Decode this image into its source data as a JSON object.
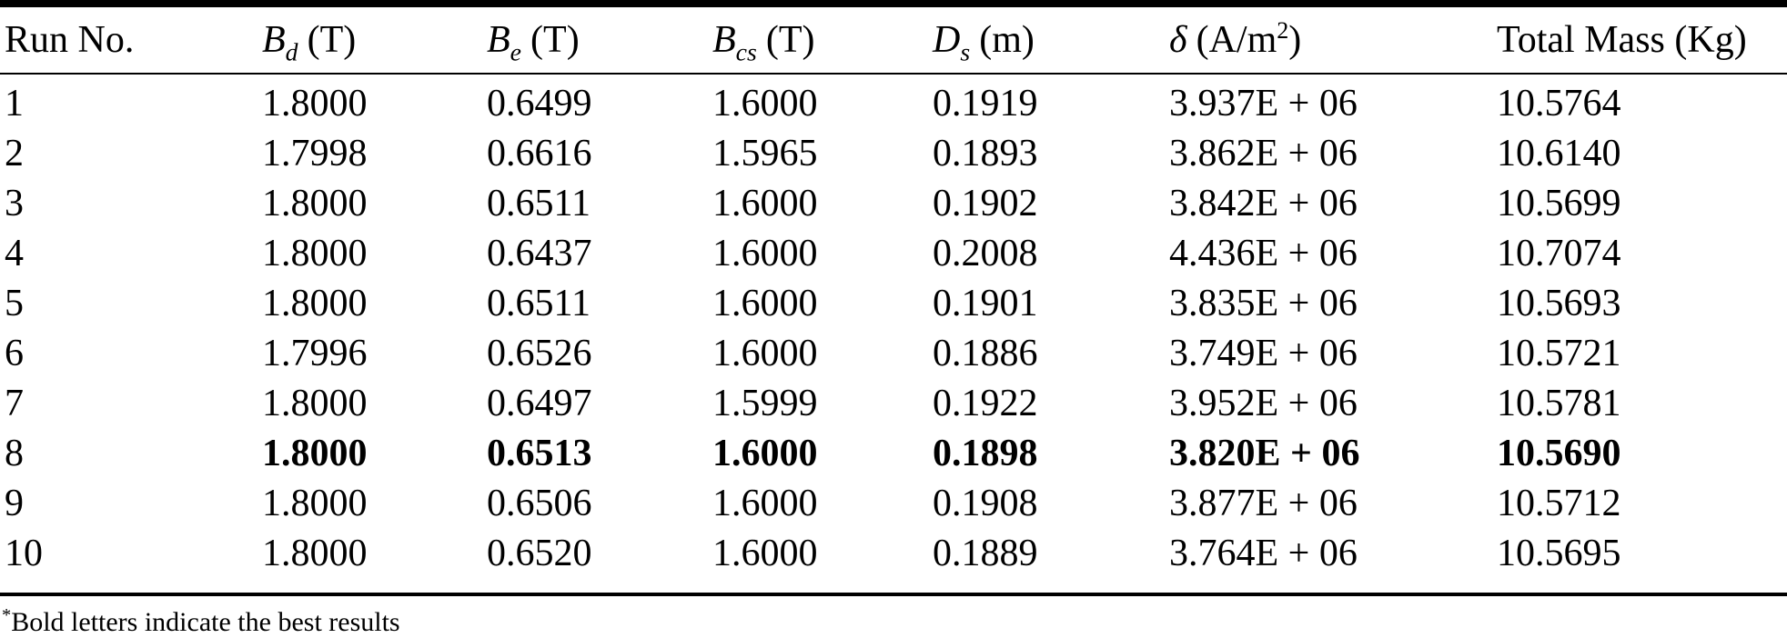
{
  "table": {
    "headers": [
      {
        "text": "Run No."
      },
      {
        "base": "B",
        "sub": "d",
        "unit": "(T)"
      },
      {
        "base": "B",
        "sub": "e",
        "unit": "(T)"
      },
      {
        "base": "B",
        "sub": "cs",
        "unit": "(T)"
      },
      {
        "base": "D",
        "sub": "s",
        "unit": "(m)"
      },
      {
        "base": "δ",
        "unit": "(A/m",
        "sup": "2",
        "close": ")"
      },
      {
        "text": "Total Mass (Kg)"
      }
    ],
    "rows": [
      {
        "bold": false,
        "cells": [
          "1",
          "1.8000",
          "0.6499",
          "1.6000",
          "0.1919",
          "3.937E + 06",
          "10.5764"
        ]
      },
      {
        "bold": false,
        "cells": [
          "2",
          "1.7998",
          "0.6616",
          "1.5965",
          "0.1893",
          "3.862E + 06",
          "10.6140"
        ]
      },
      {
        "bold": false,
        "cells": [
          "3",
          "1.8000",
          "0.6511",
          "1.6000",
          "0.1902",
          "3.842E + 06",
          "10.5699"
        ]
      },
      {
        "bold": false,
        "cells": [
          "4",
          "1.8000",
          "0.6437",
          "1.6000",
          "0.2008",
          "4.436E + 06",
          "10.7074"
        ]
      },
      {
        "bold": false,
        "cells": [
          "5",
          "1.8000",
          "0.6511",
          "1.6000",
          "0.1901",
          "3.835E + 06",
          "10.5693"
        ]
      },
      {
        "bold": false,
        "cells": [
          "6",
          "1.7996",
          "0.6526",
          "1.6000",
          "0.1886",
          "3.749E + 06",
          "10.5721"
        ]
      },
      {
        "bold": false,
        "cells": [
          "7",
          "1.8000",
          "0.6497",
          "1.5999",
          "0.1922",
          "3.952E + 06",
          "10.5781"
        ]
      },
      {
        "bold": true,
        "cells": [
          "8",
          "1.8000",
          "0.6513",
          "1.6000",
          "0.1898",
          "3.820E + 06",
          "10.5690"
        ]
      },
      {
        "bold": false,
        "cells": [
          "9",
          "1.8000",
          "0.6506",
          "1.6000",
          "0.1908",
          "3.877E + 06",
          "10.5712"
        ]
      },
      {
        "bold": false,
        "cells": [
          "10",
          "1.8000",
          "0.6520",
          "1.6000",
          "0.1889",
          "3.764E + 06",
          "10.5695"
        ]
      }
    ],
    "footnote": {
      "marker": "*",
      "text": "Bold letters indicate the best results"
    }
  }
}
